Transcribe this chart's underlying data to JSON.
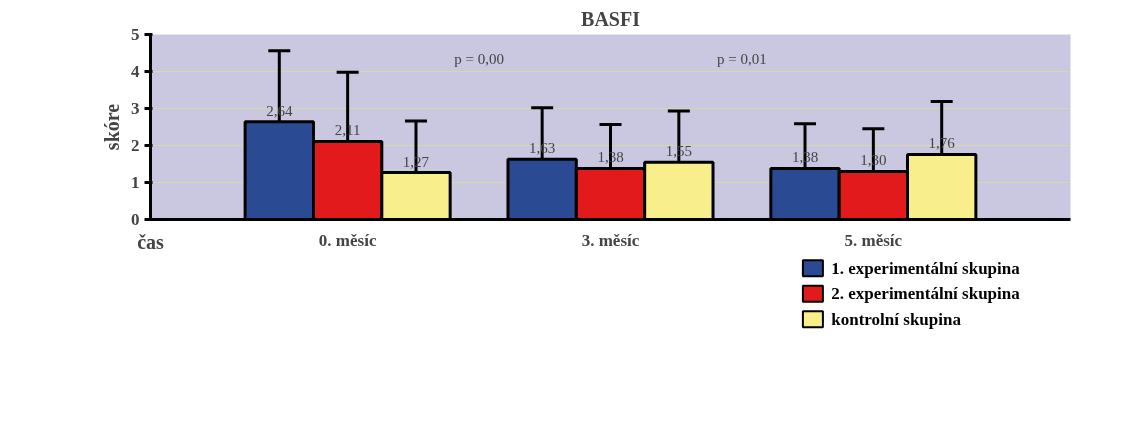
{
  "chart_data": {
    "type": "bar",
    "title": "BASFI",
    "ylabel": "skóre",
    "xlabel": "čas",
    "categories": [
      "0. měsíc",
      "3. měsíc",
      "5. měsíc"
    ],
    "series": [
      {
        "name": "1. experimentální skupina",
        "color": "#2b4a94",
        "values": [
          2.64,
          1.63,
          1.38
        ],
        "value_labels": [
          "2,64",
          "1,63",
          "1,38"
        ],
        "errors": [
          1.92,
          1.39,
          1.21
        ]
      },
      {
        "name": "2. experimentální skupina",
        "color": "#e31a1c",
        "values": [
          2.11,
          1.38,
          1.3
        ],
        "value_labels": [
          "2,11",
          "1,38",
          "1,30"
        ],
        "errors": [
          1.87,
          1.19,
          1.15
        ]
      },
      {
        "name": "kontrolní skupina",
        "color": "#f8ee8c",
        "values": [
          1.27,
          1.55,
          1.76
        ],
        "value_labels": [
          "1,27",
          "1,55",
          "1,76"
        ],
        "errors": [
          1.39,
          1.38,
          1.43
        ]
      }
    ],
    "annotations": [
      "p = 0,00",
      "p = 0,01"
    ],
    "ylim": [
      0,
      5
    ],
    "yticks": [
      0,
      1,
      2,
      3,
      4,
      5
    ],
    "grid": "y",
    "legend": "bottom right"
  }
}
